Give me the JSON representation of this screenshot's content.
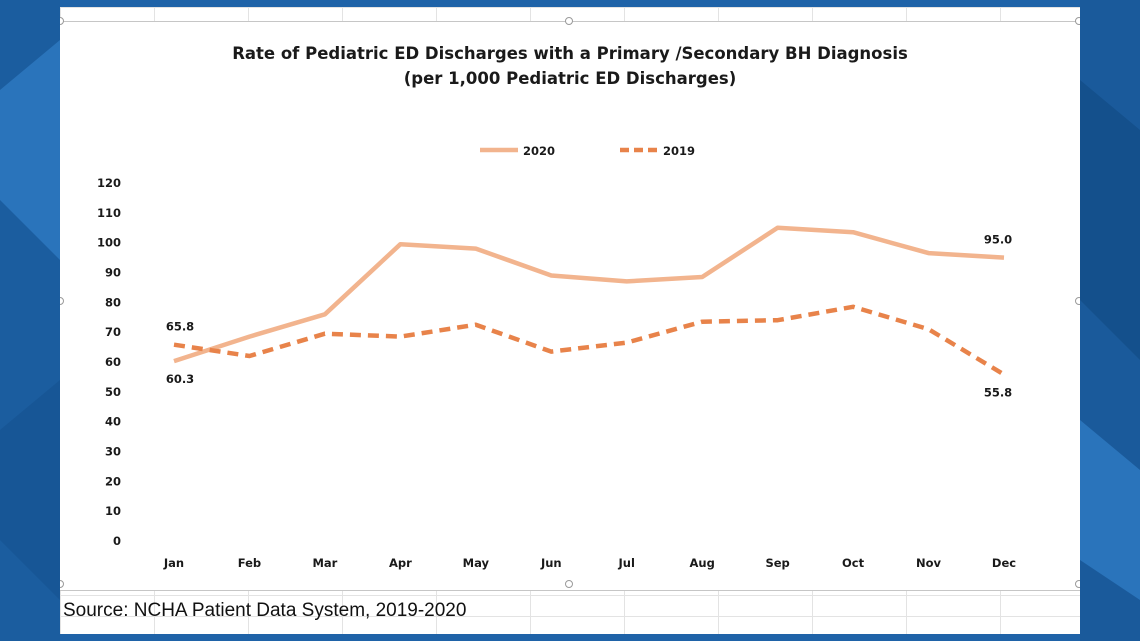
{
  "chart_data": {
    "type": "line",
    "title": "Rate of Pediatric ED Discharges with a Primary /Secondary BH Diagnosis",
    "subtitle": "(per 1,000 Pediatric ED Discharges)",
    "categories": [
      "Jan",
      "Feb",
      "Mar",
      "Apr",
      "May",
      "Jun",
      "Jul",
      "Aug",
      "Sep",
      "Oct",
      "Nov",
      "Dec"
    ],
    "series": [
      {
        "name": "2020",
        "color": "#f2b48e",
        "dashed": false,
        "values": [
          60.3,
          68.5,
          76,
          99.5,
          98,
          89,
          87,
          88.5,
          105,
          103.5,
          96.5,
          95.0
        ],
        "labels": [
          {
            "index": 0,
            "text": "60.3",
            "position": "below"
          },
          {
            "index": 11,
            "text": "95.0",
            "position": "above"
          }
        ]
      },
      {
        "name": "2019",
        "color": "#e8834a",
        "dashed": true,
        "values": [
          65.8,
          62,
          69.5,
          68.5,
          72.5,
          63.5,
          66.5,
          73.5,
          74,
          78.5,
          71,
          55.8
        ],
        "labels": [
          {
            "index": 0,
            "text": "65.8",
            "position": "above"
          },
          {
            "index": 11,
            "text": "55.8",
            "position": "below"
          }
        ]
      }
    ],
    "ylim": [
      0,
      120
    ],
    "yticks": [
      "0",
      "10",
      "20",
      "30",
      "40",
      "50",
      "60",
      "70",
      "80",
      "90",
      "100",
      "110",
      "120"
    ],
    "grid": false,
    "legend_position": "top-center"
  },
  "source": "Source: NCHA Patient Data System, 2019-2020"
}
